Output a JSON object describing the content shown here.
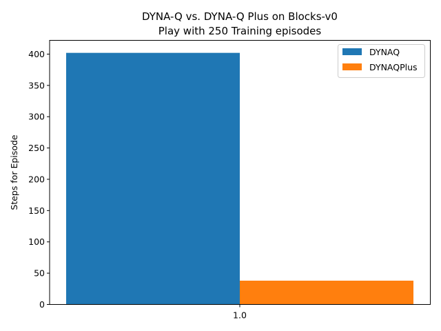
{
  "chart_data": {
    "type": "bar",
    "title_line1": "DYNA-Q vs. DYNA-Q Plus on Blocks-v0",
    "title_line2": "Play with 250 Training episodes",
    "xlabel": "",
    "ylabel": "Steps for Episode",
    "categories": [
      "1.0"
    ],
    "series": [
      {
        "name": "DYNAQ",
        "values": [
          402
        ],
        "color": "#1f77b4"
      },
      {
        "name": "DYNAQPlus",
        "values": [
          38
        ],
        "color": "#ff7f0e"
      }
    ],
    "ylim": [
      0,
      422
    ],
    "yticks": [
      0,
      50,
      100,
      150,
      200,
      250,
      300,
      350,
      400
    ],
    "grid": false,
    "legend_position": "top-right"
  }
}
